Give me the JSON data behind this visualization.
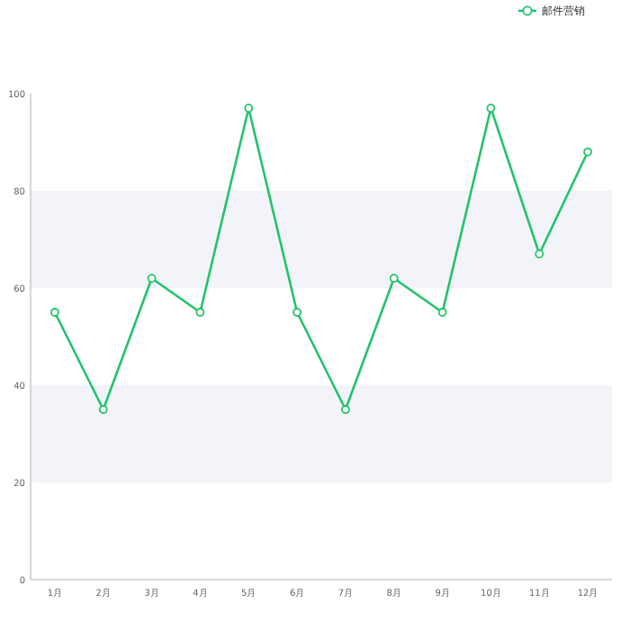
{
  "chart_data": {
    "type": "line",
    "categories": [
      "1月",
      "2月",
      "3月",
      "4月",
      "5月",
      "6月",
      "7月",
      "8月",
      "9月",
      "10月",
      "11月",
      "12月"
    ],
    "series": [
      {
        "name": "邮件营销",
        "color": "#22c36a",
        "values": [
          55,
          35,
          62,
          55,
          97,
          55,
          35,
          62,
          55,
          97,
          67,
          88
        ]
      }
    ],
    "ylim": [
      0,
      100
    ],
    "yticks": [
      0,
      20,
      40,
      60,
      80,
      100
    ],
    "marker": "circle",
    "legend": "top right",
    "grid": false,
    "bands": [
      {
        "axis": "y",
        "from": 20,
        "to": 40,
        "color": "#f3f4f9"
      },
      {
        "axis": "y",
        "from": 60,
        "to": 80,
        "color": "#f3f4f9"
      }
    ]
  }
}
